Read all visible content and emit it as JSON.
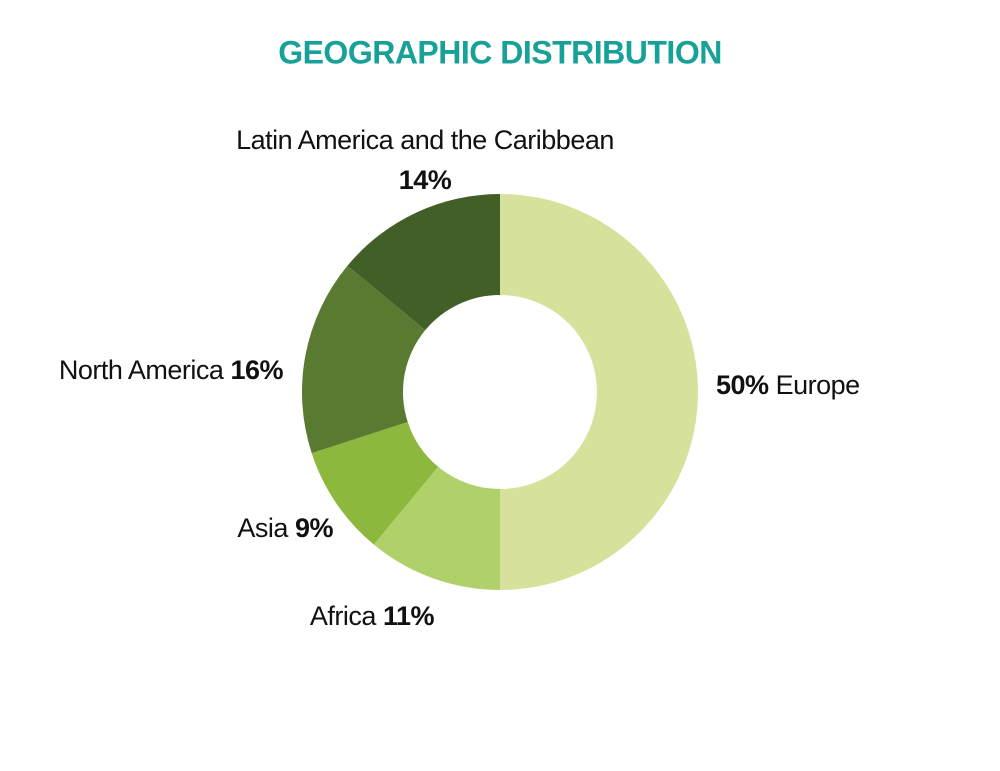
{
  "chart_data": {
    "type": "donut",
    "title": "GEOGRAPHIC DISTRIBUTION",
    "categories": [
      "Europe",
      "Africa",
      "Asia",
      "North America",
      "Latin America and the Caribbean"
    ],
    "values": [
      50,
      11,
      9,
      16,
      14
    ],
    "value_labels": [
      "50%",
      "11%",
      "9%",
      "16%",
      "14%"
    ],
    "colors": [
      "#d6e29c",
      "#b0d06a",
      "#8db83e",
      "#5a7a31",
      "#435f28"
    ]
  }
}
